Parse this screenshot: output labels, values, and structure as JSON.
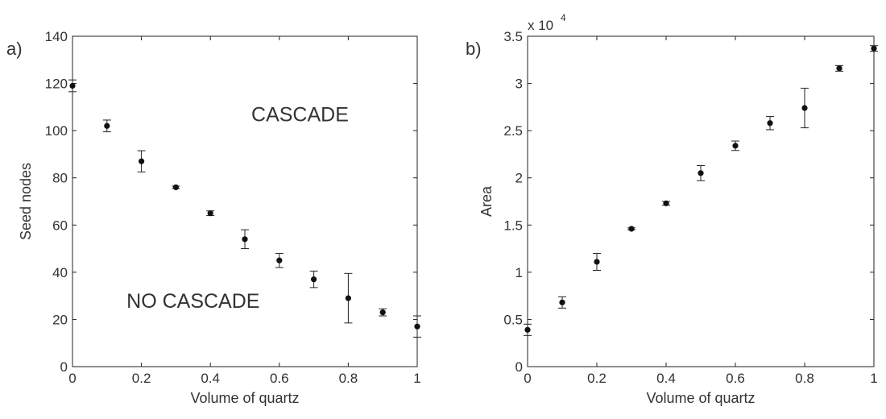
{
  "chart_data": [
    {
      "type": "scatter",
      "panel_label": "a)",
      "xlabel": "Volume of quartz",
      "ylabel": "Seed nodes",
      "xlim": [
        0,
        1
      ],
      "ylim": [
        0,
        140
      ],
      "xticks": [
        0,
        0.2,
        0.4,
        0.6,
        0.8,
        1
      ],
      "xtick_labels": [
        "0",
        "0.2",
        "0.4",
        "0.6",
        "0.8",
        "1"
      ],
      "yticks": [
        0,
        20,
        40,
        60,
        80,
        100,
        120,
        140
      ],
      "ytick_labels": [
        "0",
        "20",
        "40",
        "60",
        "80",
        "100",
        "120",
        "140"
      ],
      "grid": false,
      "error_bars": true,
      "series": [
        {
          "x": [
            0,
            0.1,
            0.2,
            0.3,
            0.4,
            0.5,
            0.6,
            0.7,
            0.8,
            0.9,
            1.0
          ],
          "y": [
            119,
            102,
            87,
            76,
            65,
            54,
            45,
            37,
            29,
            23,
            17
          ],
          "err": [
            2.5,
            2.5,
            4.5,
            0.5,
            1,
            4,
            3,
            3.5,
            10.5,
            1.5,
            4.5
          ]
        }
      ],
      "annotations": [
        {
          "text": "CASCADE",
          "x": 0.66,
          "y": 104
        },
        {
          "text": "NO CASCADE",
          "x": 0.35,
          "y": 25
        }
      ]
    },
    {
      "type": "scatter",
      "panel_label": "b)",
      "xlabel": "Volume of quartz",
      "ylabel": "Area",
      "axis_multiplier_base": "x 10",
      "axis_multiplier_exp": "4",
      "xlim": [
        0,
        1
      ],
      "ylim": [
        0,
        3.5
      ],
      "xticks": [
        0,
        0.2,
        0.4,
        0.6,
        0.8,
        1
      ],
      "xtick_labels": [
        "0",
        "0.2",
        "0.4",
        "0.6",
        "0.8",
        "1"
      ],
      "yticks": [
        0,
        0.5,
        1,
        1.5,
        2,
        2.5,
        3,
        3.5
      ],
      "ytick_labels": [
        "0",
        "0.5",
        "1",
        "1.5",
        "2",
        "2.5",
        "3",
        "3.5"
      ],
      "grid": false,
      "error_bars": true,
      "series": [
        {
          "x": [
            0,
            0.1,
            0.2,
            0.3,
            0.4,
            0.5,
            0.6,
            0.7,
            0.8,
            0.9,
            1.0
          ],
          "y": [
            0.39,
            0.68,
            1.11,
            1.46,
            1.73,
            2.05,
            2.34,
            2.58,
            2.74,
            3.16,
            3.37
          ],
          "err": [
            0.06,
            0.06,
            0.09,
            0.01,
            0.02,
            0.08,
            0.05,
            0.07,
            0.21,
            0.03,
            0.03
          ]
        }
      ],
      "annotations": []
    }
  ]
}
